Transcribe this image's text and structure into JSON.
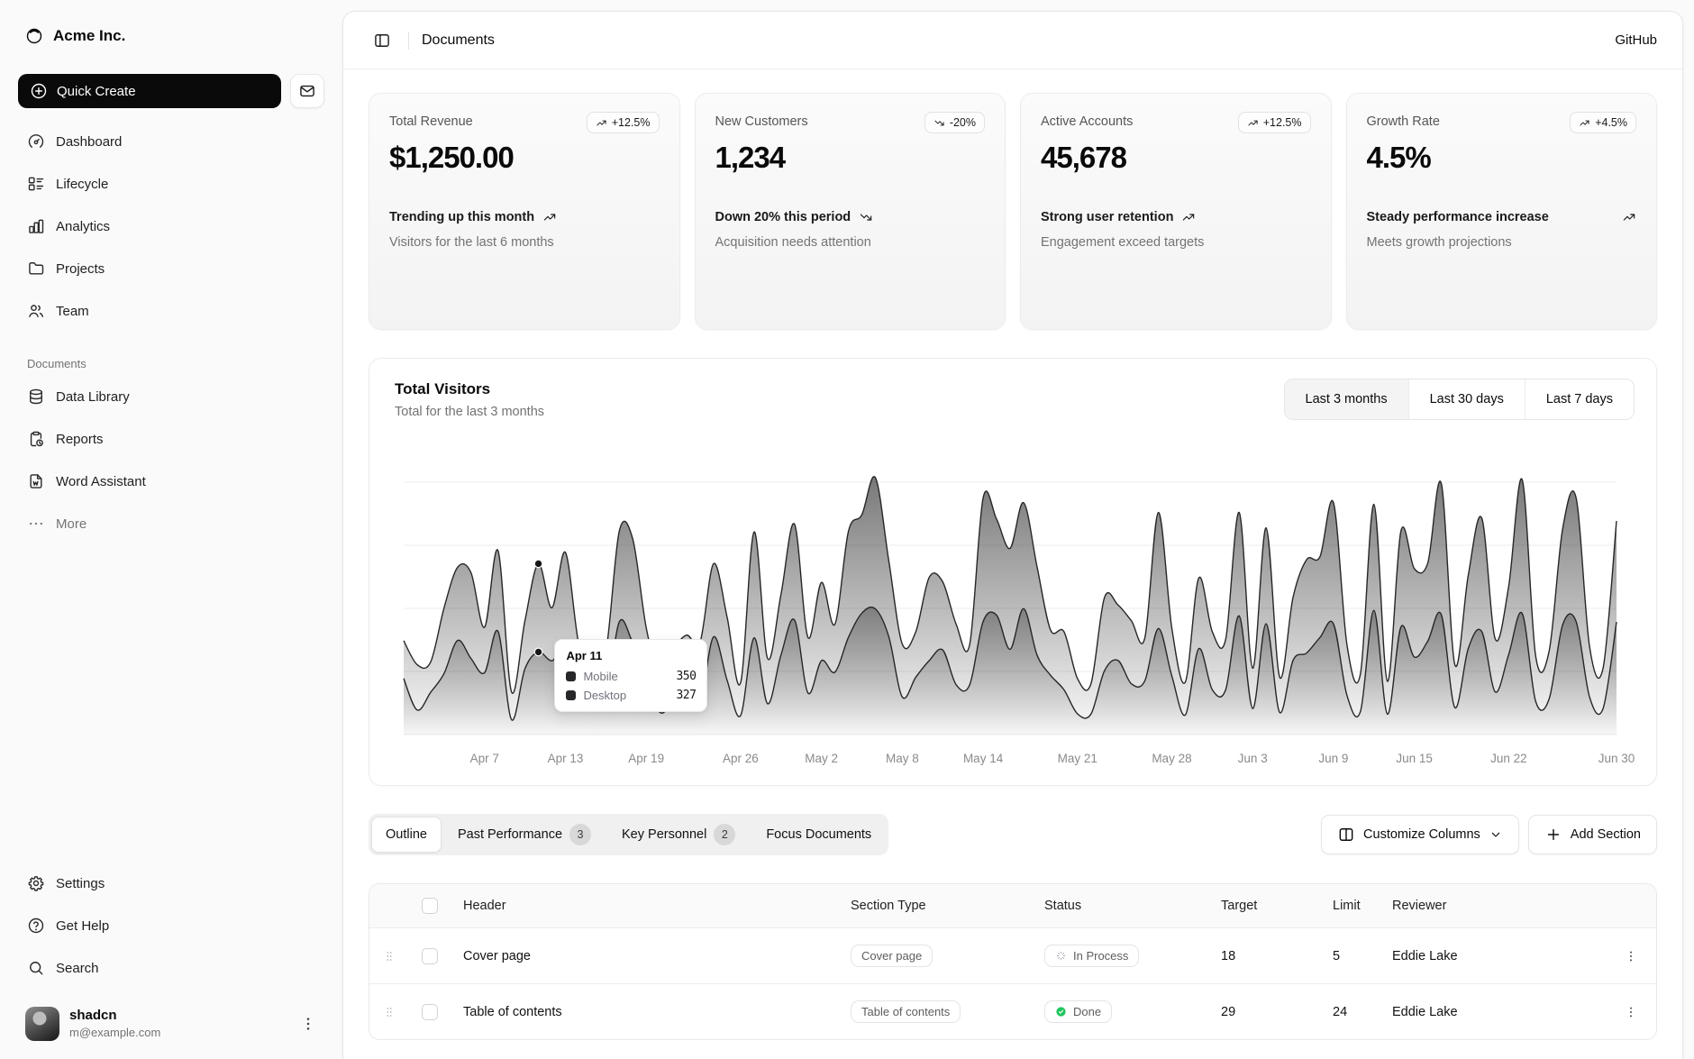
{
  "app": {
    "brand": "Acme Inc.",
    "github_label": "GitHub"
  },
  "sidebar": {
    "quick_create_label": "Quick Create",
    "nav": [
      {
        "label": "Dashboard",
        "icon": "gauge-icon"
      },
      {
        "label": "Lifecycle",
        "icon": "list-details-icon"
      },
      {
        "label": "Analytics",
        "icon": "chart-bar-icon"
      },
      {
        "label": "Projects",
        "icon": "folder-icon"
      },
      {
        "label": "Team",
        "icon": "users-icon"
      }
    ],
    "group_label": "Documents",
    "docs": [
      {
        "label": "Data Library",
        "icon": "database-icon"
      },
      {
        "label": "Reports",
        "icon": "report-icon"
      },
      {
        "label": "Word Assistant",
        "icon": "file-word-icon"
      },
      {
        "label": "More",
        "icon": "dots-icon",
        "muted": true
      }
    ],
    "footer": [
      {
        "label": "Settings",
        "icon": "gear-icon"
      },
      {
        "label": "Get Help",
        "icon": "help-icon"
      },
      {
        "label": "Search",
        "icon": "search-icon"
      }
    ],
    "user": {
      "name": "shadcn",
      "email": "m@example.com"
    }
  },
  "header": {
    "title": "Documents"
  },
  "cards": [
    {
      "title": "Total Revenue",
      "badge": "+12.5%",
      "trend": "up",
      "value": "$1,250.00",
      "footer_primary": "Trending up this month",
      "footer_secondary": "Visitors for the last 6 months"
    },
    {
      "title": "New Customers",
      "badge": "-20%",
      "trend": "down",
      "value": "1,234",
      "footer_primary": "Down 20% this period",
      "footer_secondary": "Acquisition needs attention"
    },
    {
      "title": "Active Accounts",
      "badge": "+12.5%",
      "trend": "up",
      "value": "45,678",
      "footer_primary": "Strong user retention",
      "footer_secondary": "Engagement exceed targets"
    },
    {
      "title": "Growth Rate",
      "badge": "+4.5%",
      "trend": "up",
      "value": "4.5%",
      "wrap": true,
      "footer_primary": "Steady performance increase",
      "footer_secondary": "Meets growth projections"
    }
  ],
  "chart": {
    "title": "Total Visitors",
    "subtitle": "Total for the last 3 months",
    "ranges": [
      "Last 3 months",
      "Last 30 days",
      "Last 7 days"
    ],
    "active_range": "Last 3 months",
    "tooltip": {
      "date": "Apr 11",
      "point_index": 10,
      "rows": [
        {
          "label": "Mobile",
          "value": "350"
        },
        {
          "label": "Desktop",
          "value": "327"
        }
      ]
    },
    "x_ticks": [
      {
        "label": "Apr 7",
        "index": 6
      },
      {
        "label": "Apr 13",
        "index": 12
      },
      {
        "label": "Apr 19",
        "index": 18
      },
      {
        "label": "Apr 26",
        "index": 25
      },
      {
        "label": "May 2",
        "index": 31
      },
      {
        "label": "May 8",
        "index": 37
      },
      {
        "label": "May 14",
        "index": 43
      },
      {
        "label": "May 21",
        "index": 50
      },
      {
        "label": "May 28",
        "index": 57
      },
      {
        "label": "Jun 3",
        "index": 63
      },
      {
        "label": "Jun 9",
        "index": 69
      },
      {
        "label": "Jun 15",
        "index": 75
      },
      {
        "label": "Jun 22",
        "index": 82
      },
      {
        "label": "Jun 30",
        "index": 90
      }
    ]
  },
  "chart_data": {
    "type": "area",
    "stacked": true,
    "title": "Total Visitors",
    "x_range": [
      "Apr 1",
      "Jun 30"
    ],
    "ylim": [
      0,
      1050
    ],
    "y_gridlines": [
      250,
      500,
      750,
      1000
    ],
    "grid": true,
    "legend_position": "tooltip-only",
    "series": [
      {
        "name": "Desktop",
        "values": [
          222,
          97,
          167,
          242,
          373,
          301,
          245,
          409,
          59,
          261,
          327,
          292,
          342,
          137,
          120,
          138,
          446,
          364,
          243,
          89,
          137,
          224,
          138,
          387,
          215,
          75,
          383,
          122,
          315,
          454,
          165,
          293,
          247,
          385,
          481,
          498,
          388,
          149,
          227,
          293,
          335,
          197,
          197,
          448,
          473,
          338,
          499,
          315,
          235,
          177,
          82,
          81,
          252,
          294,
          201,
          213,
          420,
          233,
          78,
          340,
          178,
          178,
          470,
          103,
          439,
          88,
          294,
          323,
          385,
          438,
          155,
          92,
          492,
          81,
          426,
          307,
          371,
          475,
          107,
          341,
          408,
          169,
          317,
          480,
          132,
          141,
          434,
          448,
          149,
          103,
          446
        ]
      },
      {
        "name": "Mobile",
        "values": [
          150,
          180,
          120,
          260,
          290,
          340,
          180,
          320,
          110,
          190,
          350,
          210,
          380,
          220,
          170,
          190,
          360,
          410,
          180,
          150,
          200,
          170,
          230,
          290,
          250,
          130,
          420,
          180,
          240,
          380,
          220,
          310,
          190,
          420,
          390,
          520,
          300,
          210,
          180,
          330,
          270,
          240,
          160,
          490,
          380,
          400,
          420,
          350,
          180,
          230,
          140,
          120,
          290,
          220,
          250,
          170,
          460,
          190,
          130,
          280,
          230,
          200,
          410,
          160,
          380,
          140,
          250,
          370,
          320,
          480,
          200,
          150,
          420,
          130,
          380,
          350,
          310,
          520,
          170,
          290,
          450,
          210,
          270,
          530,
          180,
          190,
          380,
          490,
          200,
          160,
          400
        ]
      }
    ]
  },
  "tabs": {
    "items": [
      {
        "label": "Outline",
        "active": true
      },
      {
        "label": "Past Performance",
        "badge": "3"
      },
      {
        "label": "Key Personnel",
        "badge": "2"
      },
      {
        "label": "Focus Documents"
      }
    ],
    "customize_columns_label": "Customize Columns",
    "add_section_label": "Add Section"
  },
  "table": {
    "columns": [
      "Header",
      "Section Type",
      "Status",
      "Target",
      "Limit",
      "Reviewer"
    ],
    "rows": [
      {
        "header": "Cover page",
        "section_type": "Cover page",
        "status": "In Process",
        "status_kind": "in-process",
        "target": "18",
        "limit": "5",
        "reviewer": "Eddie Lake"
      },
      {
        "header": "Table of contents",
        "section_type": "Table of contents",
        "status": "Done",
        "status_kind": "done",
        "target": "29",
        "limit": "24",
        "reviewer": "Eddie Lake"
      }
    ]
  },
  "colors": {
    "accent": "#171717",
    "done_green": "#22c55e",
    "muted": "#737373",
    "chart_stroke": "#262626"
  }
}
